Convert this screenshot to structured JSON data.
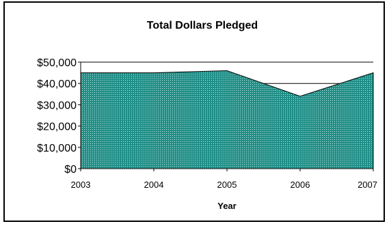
{
  "chart_data": {
    "type": "area",
    "title": "Total Dollars Pledged",
    "xlabel": "Year",
    "ylabel": "",
    "x": [
      "2003",
      "2004",
      "2005",
      "2006",
      "2007"
    ],
    "series": [
      {
        "values": [
          45000,
          45000,
          46000,
          34000,
          45000
        ]
      }
    ],
    "ylim": [
      0,
      50000
    ],
    "yticks": [
      0,
      10000,
      20000,
      30000,
      40000,
      50000
    ],
    "ytick_labels": [
      "$0",
      "$10,000",
      "$20,000",
      "$30,000",
      "$40,000",
      "$50,000"
    ],
    "grid": true,
    "legend": "none",
    "colors": {
      "fill": "#1f8e86",
      "dots": "#cfe9e6",
      "gridline": "#000000"
    }
  }
}
